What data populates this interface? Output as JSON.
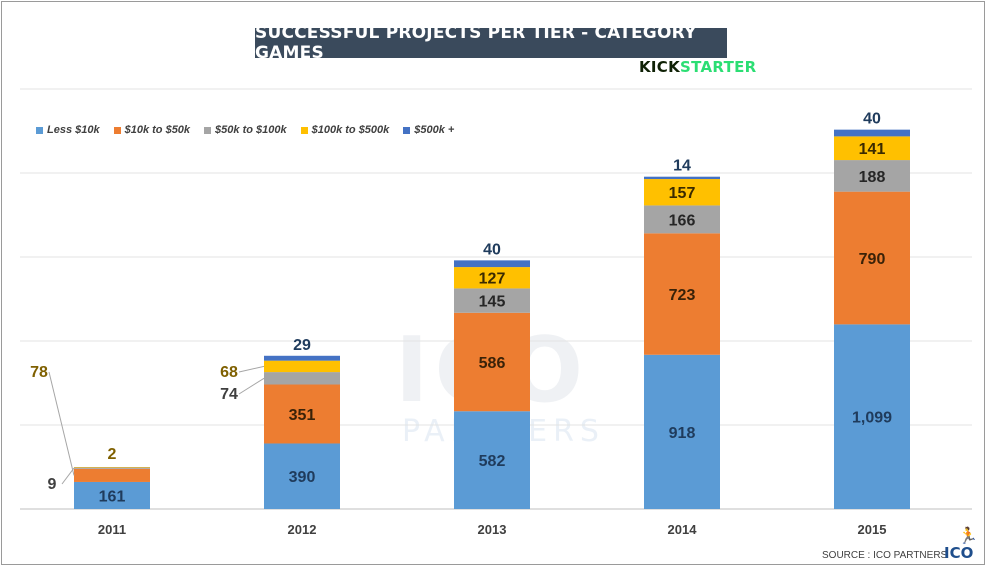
{
  "page": {
    "source": "SOURCE : ICO PARTNERS",
    "source_logo": "ICO"
  },
  "logo": {
    "part1": "KICK",
    "part2": "STARTER"
  },
  "watermark": {
    "main": "ICO",
    "sub": "PARTNERS"
  },
  "chart_data": {
    "type": "bar",
    "stacked": true,
    "title": "SUCCESSFUL PROJECTS PER TIER - CATEGORY GAMES",
    "categories": [
      "2011",
      "2012",
      "2013",
      "2014",
      "2015"
    ],
    "series": [
      {
        "name": "Less $10k",
        "color": "#5b9bd5",
        "values": [
          161,
          390,
          582,
          918,
          1099
        ],
        "labels": [
          "161",
          "390",
          "582",
          "918",
          "1,099"
        ]
      },
      {
        "name": "$10k to $50k",
        "color": "#ed7d31",
        "values": [
          78,
          351,
          586,
          723,
          790
        ],
        "labels": [
          "78",
          "351",
          "586",
          "723",
          "790"
        ]
      },
      {
        "name": "$50k to $100k",
        "color": "#a5a5a5",
        "values": [
          9,
          74,
          145,
          166,
          188
        ],
        "labels": [
          "9",
          "74",
          "145",
          "166",
          "188"
        ]
      },
      {
        "name": "$100k to $500k",
        "color": "#ffc000",
        "values": [
          2,
          68,
          127,
          157,
          141
        ],
        "labels": [
          "2",
          "68",
          "127",
          "157",
          "141"
        ]
      },
      {
        "name": "$500k +",
        "color": "#4472c4",
        "values": [
          0,
          29,
          40,
          14,
          40
        ],
        "labels": [
          "",
          "29",
          "40",
          "14",
          "40"
        ]
      }
    ],
    "ylim": [
      0,
      2500
    ],
    "grid": true,
    "legend": "top-left"
  }
}
